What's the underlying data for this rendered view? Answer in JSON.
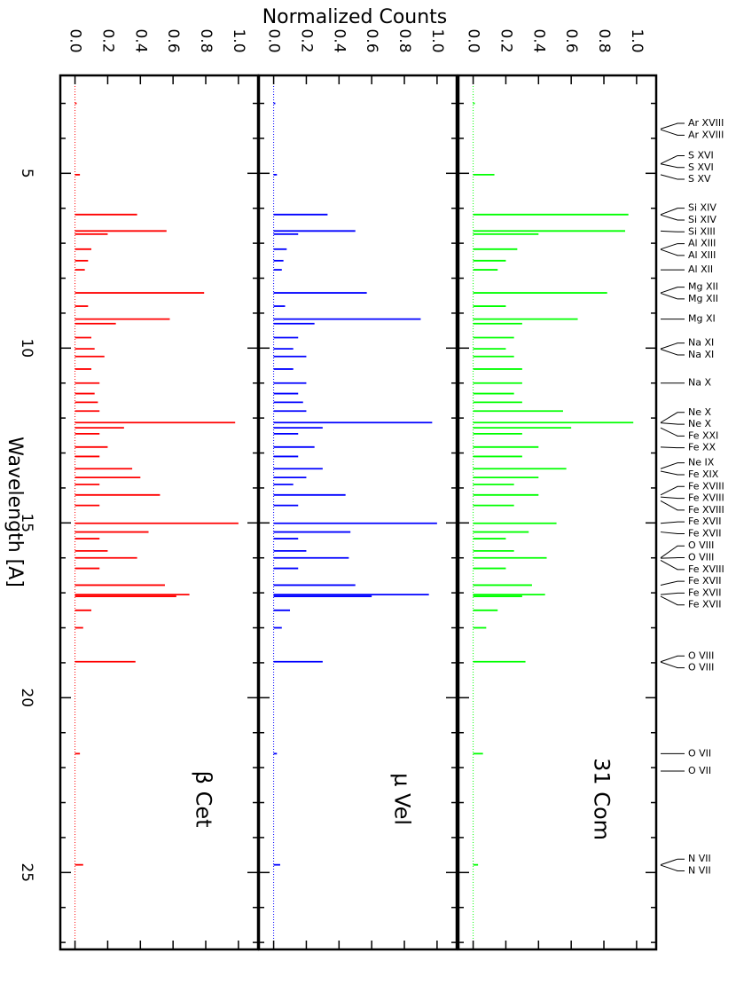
{
  "chart_data": {
    "type": "bar",
    "title": "Normalized Counts",
    "x_label": "Wavelength [A]",
    "xlim": [
      2.2,
      27.2
    ],
    "xticks": [
      5,
      10,
      15,
      20,
      25
    ],
    "xminor_ticks": [
      3,
      4,
      6,
      7,
      8,
      9,
      11,
      12,
      13,
      14,
      16,
      17,
      18,
      19,
      21,
      22,
      23,
      24,
      26,
      27
    ],
    "ylim": [
      -0.09,
      1.12
    ],
    "yticks": [
      {
        "value": 0,
        "label": "0.0"
      },
      {
        "value": 0.2,
        "label": "0.2"
      },
      {
        "value": 0.4,
        "label": "0.4"
      },
      {
        "value": 0.6,
        "label": "0.6"
      },
      {
        "value": 0.8,
        "label": "0.8"
      },
      {
        "value": 1,
        "label": "1.0"
      }
    ],
    "x": [
      3.0,
      5.04,
      6.18,
      6.65,
      6.74,
      7.17,
      7.5,
      7.76,
      8.42,
      8.8,
      9.17,
      9.3,
      9.7,
      10.02,
      10.24,
      10.6,
      11.0,
      11.3,
      11.55,
      11.8,
      12.13,
      12.28,
      12.45,
      12.83,
      13.1,
      13.45,
      13.7,
      13.9,
      14.2,
      14.5,
      15.01,
      15.26,
      15.45,
      15.8,
      16.0,
      16.3,
      16.78,
      17.05,
      17.1,
      17.5,
      18.0,
      18.97,
      21.6,
      24.78
    ],
    "series": [
      {
        "name": "β Cet",
        "color": "#ff0000",
        "values": [
          0.01,
          0.03,
          0.38,
          0.56,
          0.2,
          0.1,
          0.08,
          0.06,
          0.79,
          0.08,
          0.58,
          0.25,
          0.1,
          0.12,
          0.18,
          0.1,
          0.15,
          0.12,
          0.14,
          0.15,
          0.98,
          0.3,
          0.15,
          0.2,
          0.15,
          0.35,
          0.4,
          0.15,
          0.52,
          0.15,
          1.0,
          0.45,
          0.15,
          0.2,
          0.38,
          0.15,
          0.55,
          0.7,
          0.62,
          0.1,
          0.05,
          0.37,
          0.03,
          0.05
        ]
      },
      {
        "name": "μ Vel",
        "color": "#0000ff",
        "values": [
          0.01,
          0.02,
          0.33,
          0.5,
          0.15,
          0.08,
          0.06,
          0.05,
          0.57,
          0.07,
          0.9,
          0.25,
          0.15,
          0.12,
          0.2,
          0.12,
          0.2,
          0.15,
          0.18,
          0.2,
          0.97,
          0.3,
          0.15,
          0.25,
          0.15,
          0.3,
          0.2,
          0.12,
          0.44,
          0.15,
          1.0,
          0.47,
          0.15,
          0.2,
          0.46,
          0.15,
          0.5,
          0.95,
          0.6,
          0.1,
          0.05,
          0.3,
          0.02,
          0.04
        ]
      },
      {
        "name": "31 Com",
        "color": "#00ff00",
        "values": [
          0.01,
          0.13,
          0.95,
          0.93,
          0.4,
          0.27,
          0.2,
          0.15,
          0.82,
          0.2,
          0.64,
          0.3,
          0.25,
          0.2,
          0.25,
          0.3,
          0.3,
          0.25,
          0.3,
          0.55,
          0.98,
          0.6,
          0.3,
          0.4,
          0.3,
          0.57,
          0.4,
          0.25,
          0.4,
          0.25,
          0.51,
          0.34,
          0.2,
          0.25,
          0.45,
          0.2,
          0.36,
          0.44,
          0.3,
          0.15,
          0.08,
          0.32,
          0.06,
          0.03
        ]
      }
    ],
    "line_ids": [
      {
        "label": "Ar XVIII",
        "x": 3.73
      },
      {
        "label": "Ar XVIII",
        "x": 3.75
      },
      {
        "label": "S XVI",
        "x": 4.727
      },
      {
        "label": "S XVI",
        "x": 4.733
      },
      {
        "label": "S XV",
        "x": 5.04
      },
      {
        "label": "Si XIV",
        "x": 6.18
      },
      {
        "label": "Si XIV",
        "x": 6.19
      },
      {
        "label": "Si XIII",
        "x": 6.65
      },
      {
        "label": "Al XIII",
        "x": 7.17
      },
      {
        "label": "Al XIII",
        "x": 7.18
      },
      {
        "label": "Al XII",
        "x": 7.76
      },
      {
        "label": "Mg XII",
        "x": 8.42
      },
      {
        "label": "Mg XII",
        "x": 8.43
      },
      {
        "label": "Mg XI",
        "x": 9.17
      },
      {
        "label": "Na XI",
        "x": 10.02
      },
      {
        "label": "Na XI",
        "x": 10.03
      },
      {
        "label": "Na X",
        "x": 11.0
      },
      {
        "label": "Ne X",
        "x": 12.13
      },
      {
        "label": "Ne X",
        "x": 12.14
      },
      {
        "label": "Fe XXI",
        "x": 12.28
      },
      {
        "label": "Fe XX",
        "x": 12.83
      },
      {
        "label": "Ne IX",
        "x": 13.45
      },
      {
        "label": "Fe XIX",
        "x": 13.52
      },
      {
        "label": "Fe XVIII",
        "x": 14.2
      },
      {
        "label": "Fe XVIII",
        "x": 14.26
      },
      {
        "label": "Fe XVIII",
        "x": 14.37
      },
      {
        "label": "Fe XVII",
        "x": 15.01
      },
      {
        "label": "Fe XVII",
        "x": 15.26
      },
      {
        "label": "O VIII",
        "x": 16.0
      },
      {
        "label": "O VIII",
        "x": 16.01
      },
      {
        "label": "Fe XVIII",
        "x": 16.07
      },
      {
        "label": "Fe XVII",
        "x": 16.78
      },
      {
        "label": "Fe XVII",
        "x": 17.05
      },
      {
        "label": "Fe XVII",
        "x": 17.1
      },
      {
        "label": "O VIII",
        "x": 18.97
      },
      {
        "label": "O VIII",
        "x": 18.98
      },
      {
        "label": "O VII",
        "x": 21.6
      },
      {
        "label": "O VII",
        "x": 22.1
      },
      {
        "label": "N VII",
        "x": 24.78
      },
      {
        "label": "N VII",
        "x": 24.79
      }
    ]
  }
}
